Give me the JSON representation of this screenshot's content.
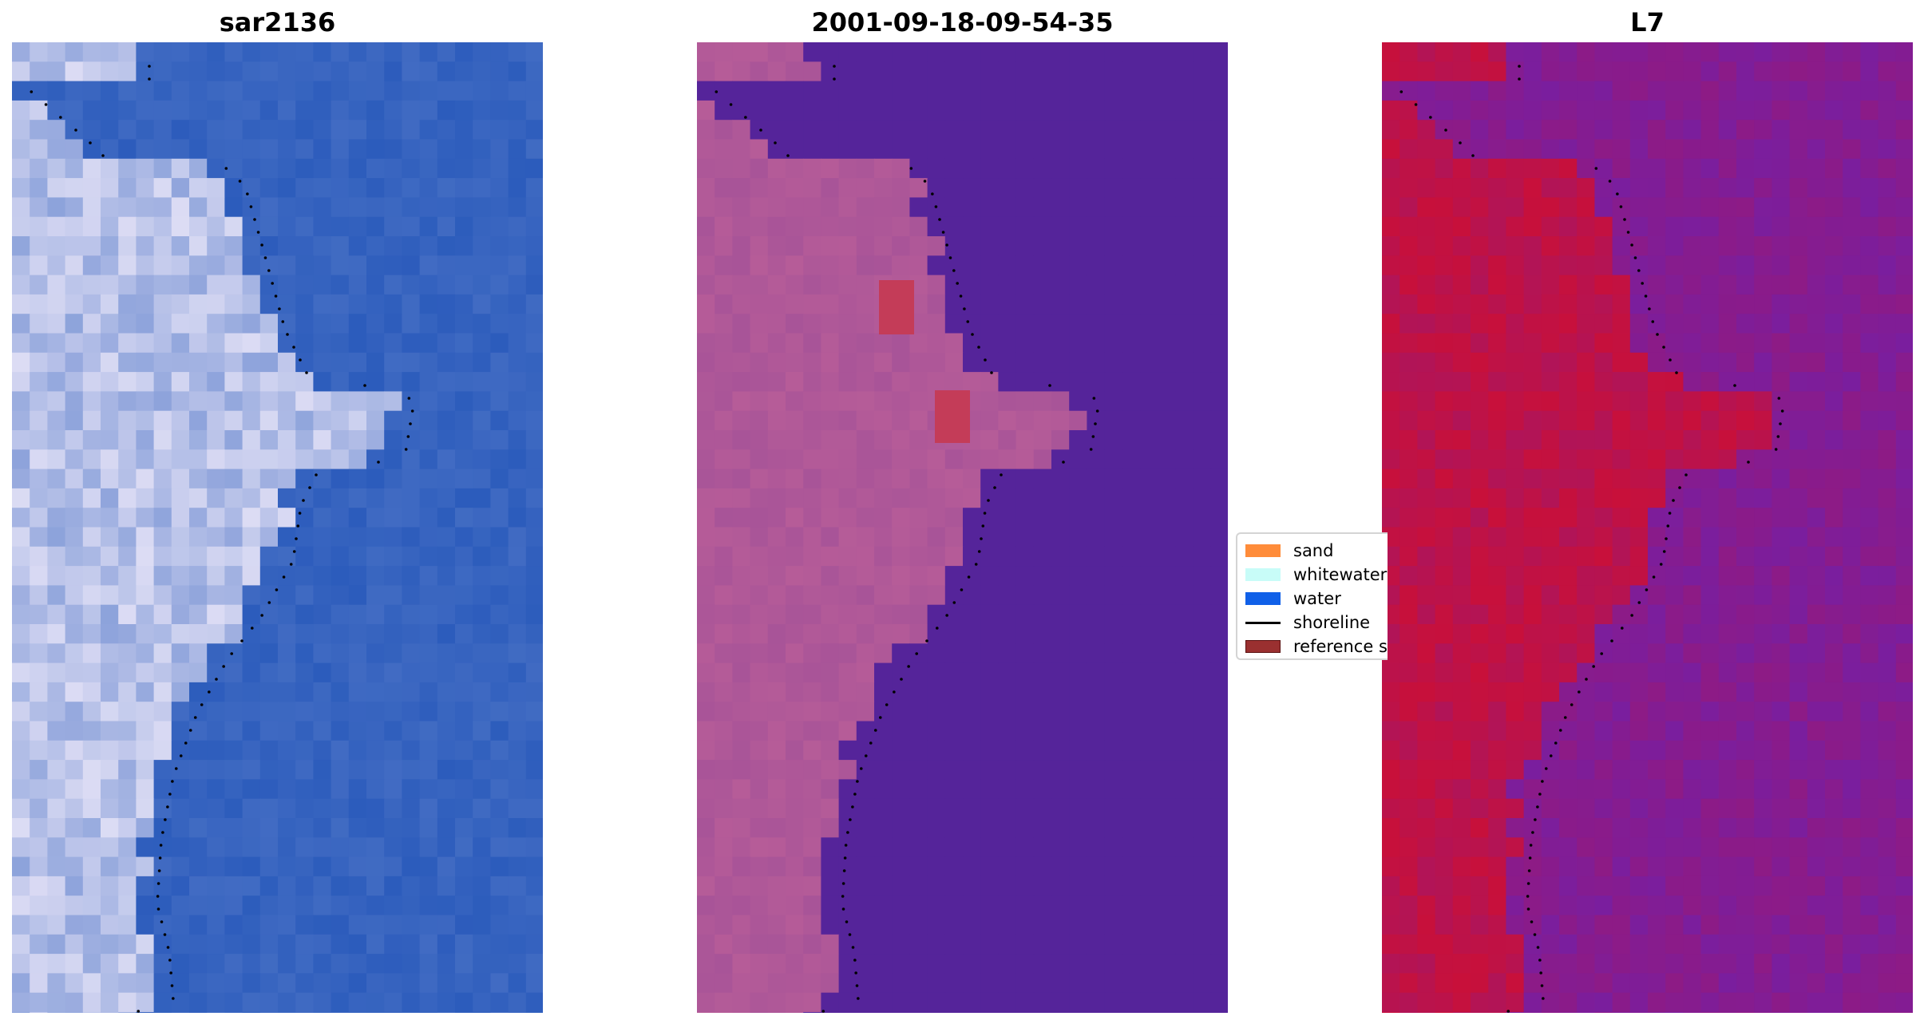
{
  "panels": [
    {
      "title": "sar2136",
      "kind": "rgb"
    },
    {
      "title": "2001-09-18-09-54-35",
      "kind": "classified"
    },
    {
      "title": "L7",
      "kind": "index"
    }
  ],
  "legend": {
    "items": [
      {
        "label": "sand",
        "color": "#ff8c3a",
        "type": "patch"
      },
      {
        "label": "whitewater",
        "color": "#c8fcf8",
        "type": "patch"
      },
      {
        "label": "water",
        "color": "#1060e8",
        "type": "patch"
      },
      {
        "label": "shoreline",
        "color": "#000000",
        "type": "line"
      },
      {
        "label": "reference shoreline",
        "color": "#9a3030",
        "type": "patch"
      }
    ]
  },
  "colors": {
    "rgb_land": "#dcdcf4",
    "rgb_water": "#2c5cbc",
    "class_land": "#b65c98",
    "class_water": "#55249a",
    "index_land": "#c8103a",
    "index_water": "#7a1e9e",
    "sand_patch": "#c43c58"
  }
}
